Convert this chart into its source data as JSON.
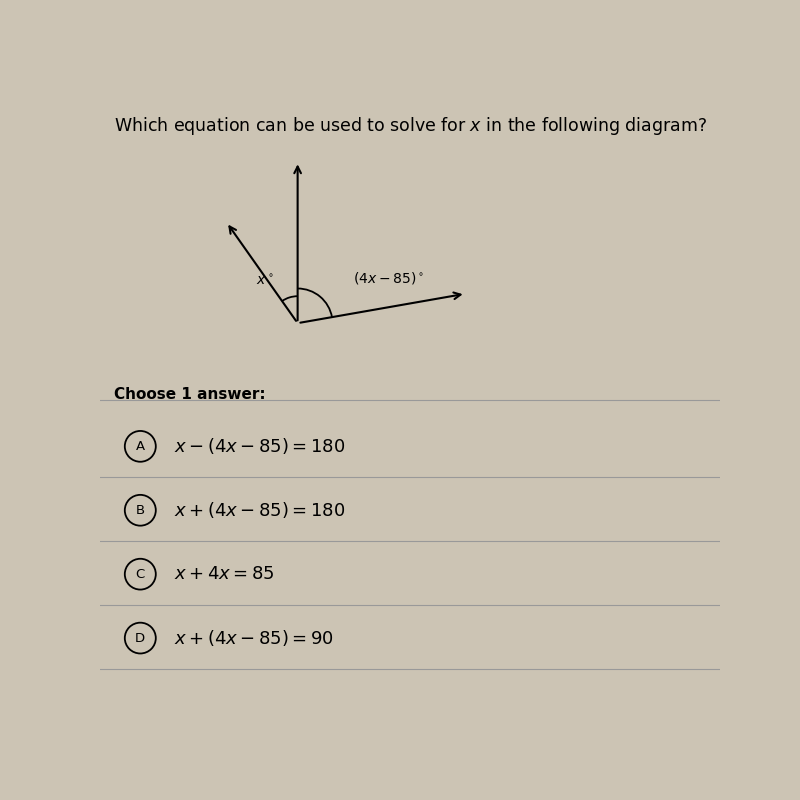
{
  "title": "Which equation can be used to solve for $x$ in the following diagram?",
  "title_fontsize": 12.5,
  "background_color": "#ccc4b4",
  "choose_label": "Choose 1 answer:",
  "choose_fontsize": 11,
  "options": [
    {
      "label": "A",
      "text": "$x-(4x-85)=180$"
    },
    {
      "label": "B",
      "text": "$x+(4x-85)=180$"
    },
    {
      "label": "C",
      "text": "$x+4x=85$"
    },
    {
      "label": "D",
      "text": "$x+(4x-85)=90$"
    }
  ],
  "option_fontsize": 13,
  "diagram_angle_label_left": "$x^\\circ$",
  "diagram_angle_label_right": "$(4x-85)^\\circ$",
  "line_color": "#000000",
  "divider_color": "#999999",
  "circle_color": "#000000"
}
